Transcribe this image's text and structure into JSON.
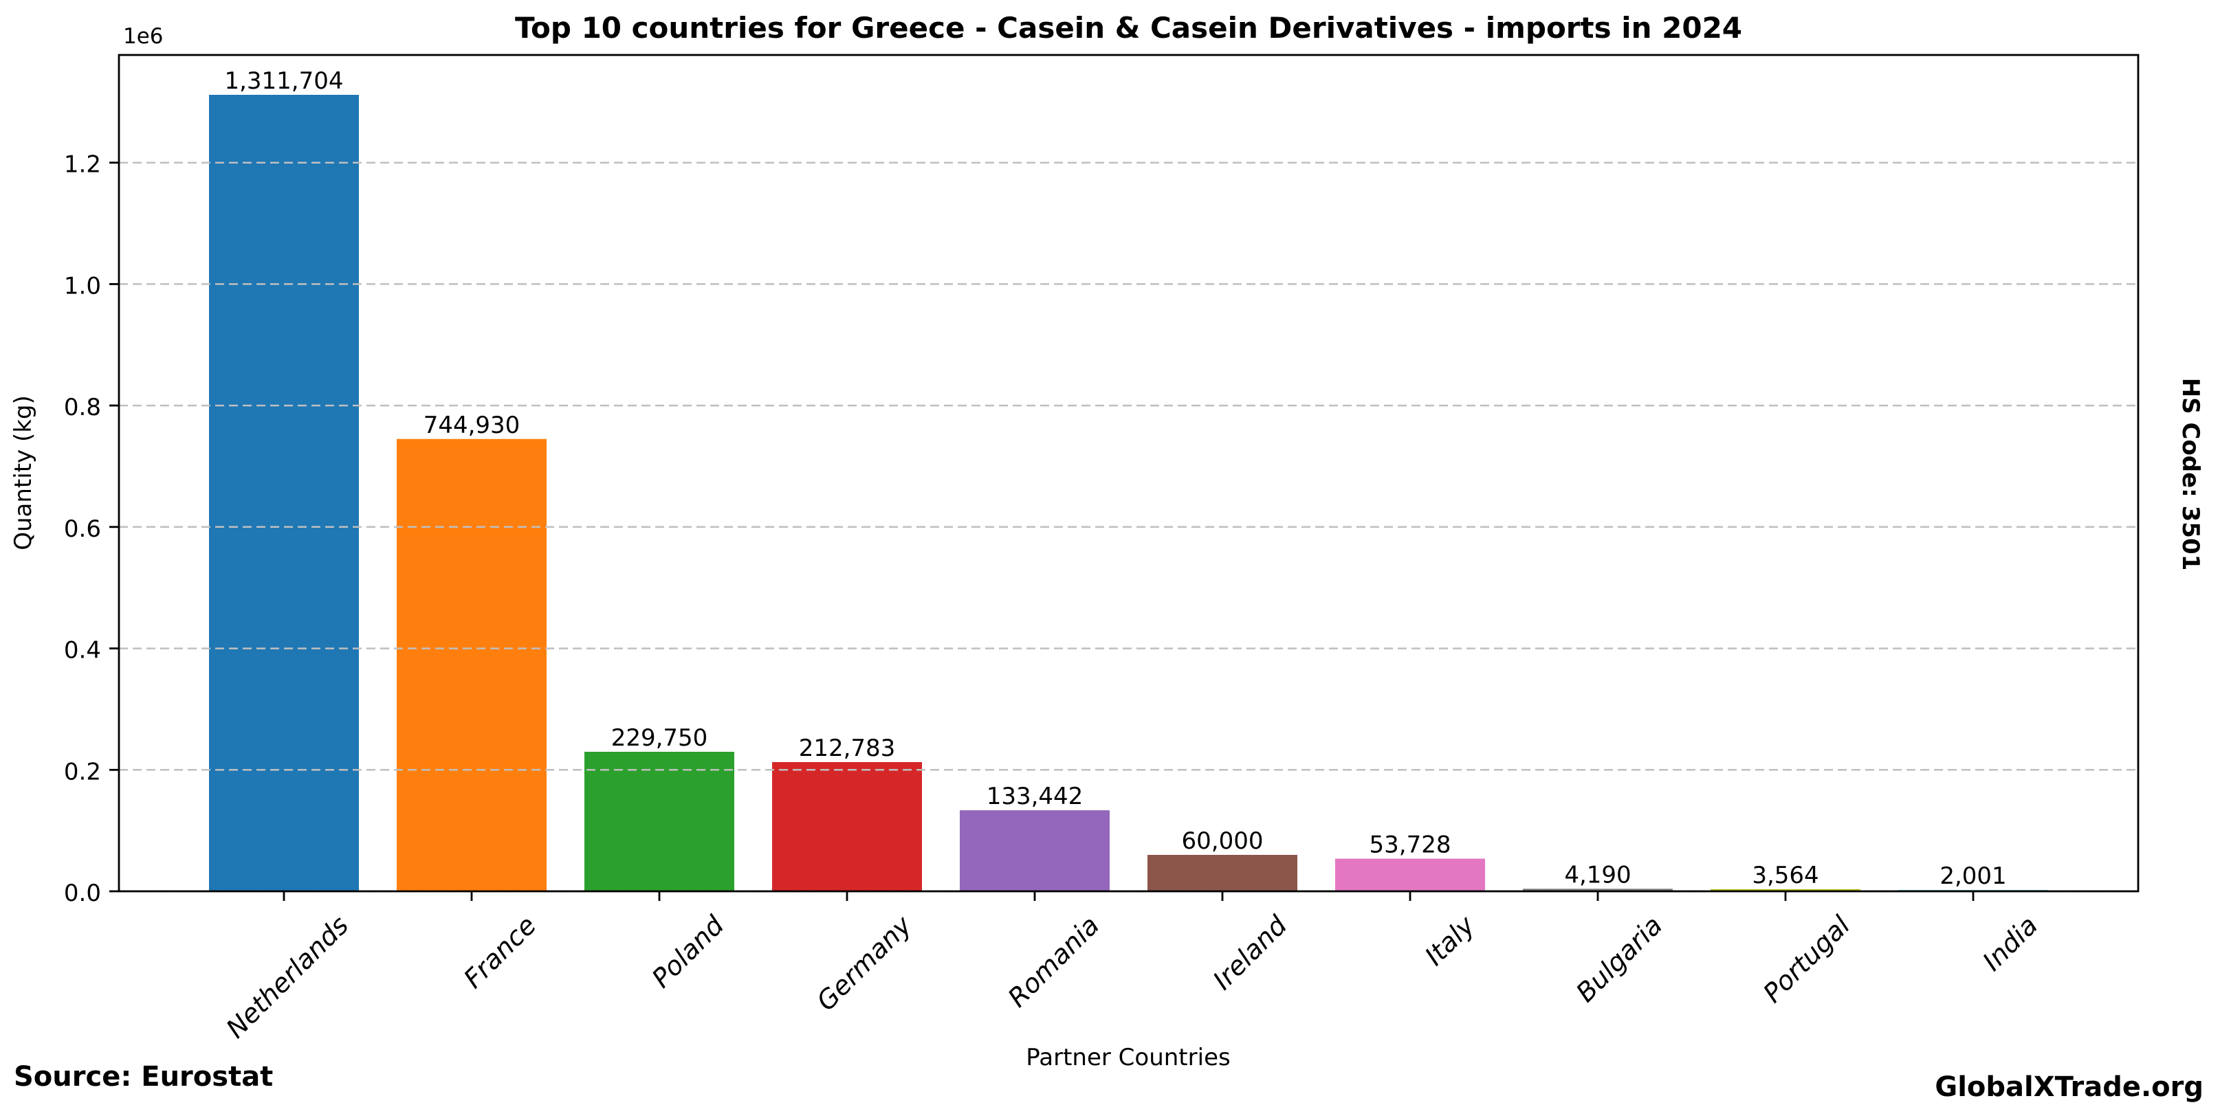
{
  "page": {
    "background": "#ffffff",
    "text_color": "#000000"
  },
  "header": {
    "title": "Top 10 countries for Greece - Casein & Casein Derivatives - imports in 2024"
  },
  "side_label": "HS Code: 3501",
  "footer": {
    "source": "Source: Eurostat",
    "brand": "GlobalXTrade.org"
  },
  "chart_data": {
    "type": "bar",
    "title": "Top 10 countries for Greece - Casein & Casein Derivatives - imports in 2024",
    "xlabel": "Partner Countries",
    "ylabel": "Quantity (kg)",
    "categories": [
      "Netherlands",
      "France",
      "Poland",
      "Germany",
      "Romania",
      "Ireland",
      "Italy",
      "Bulgaria",
      "Portugal",
      "India"
    ],
    "values": [
      1311704,
      744930,
      229750,
      212783,
      133442,
      60000,
      53728,
      4190,
      3564,
      2001
    ],
    "value_labels": [
      "1,311,704",
      "744,930",
      "229,750",
      "212,783",
      "133,442",
      "60,000",
      "53,728",
      "4,190",
      "3,564",
      "2,001"
    ],
    "bar_colors": [
      "#1f77b4",
      "#ff7f0e",
      "#2ca02c",
      "#d62728",
      "#9467bd",
      "#8c564b",
      "#e377c2",
      "#7f7f7f",
      "#bcbd22",
      "#17becf"
    ],
    "ylim": [
      0,
      1377289
    ],
    "yticks": [
      0,
      200000,
      400000,
      600000,
      800000,
      1000000,
      1200000
    ],
    "ytick_labels": [
      "0.0",
      "0.2",
      "0.4",
      "0.6",
      "0.8",
      "1.0",
      "1.2"
    ],
    "y_offset_label": "1e6",
    "grid": "horizontal-dashed",
    "grid_color": "#bfbfbf",
    "axis_color": "#000000",
    "legend": "none",
    "x_tick_style": "italic rotated 45deg"
  }
}
